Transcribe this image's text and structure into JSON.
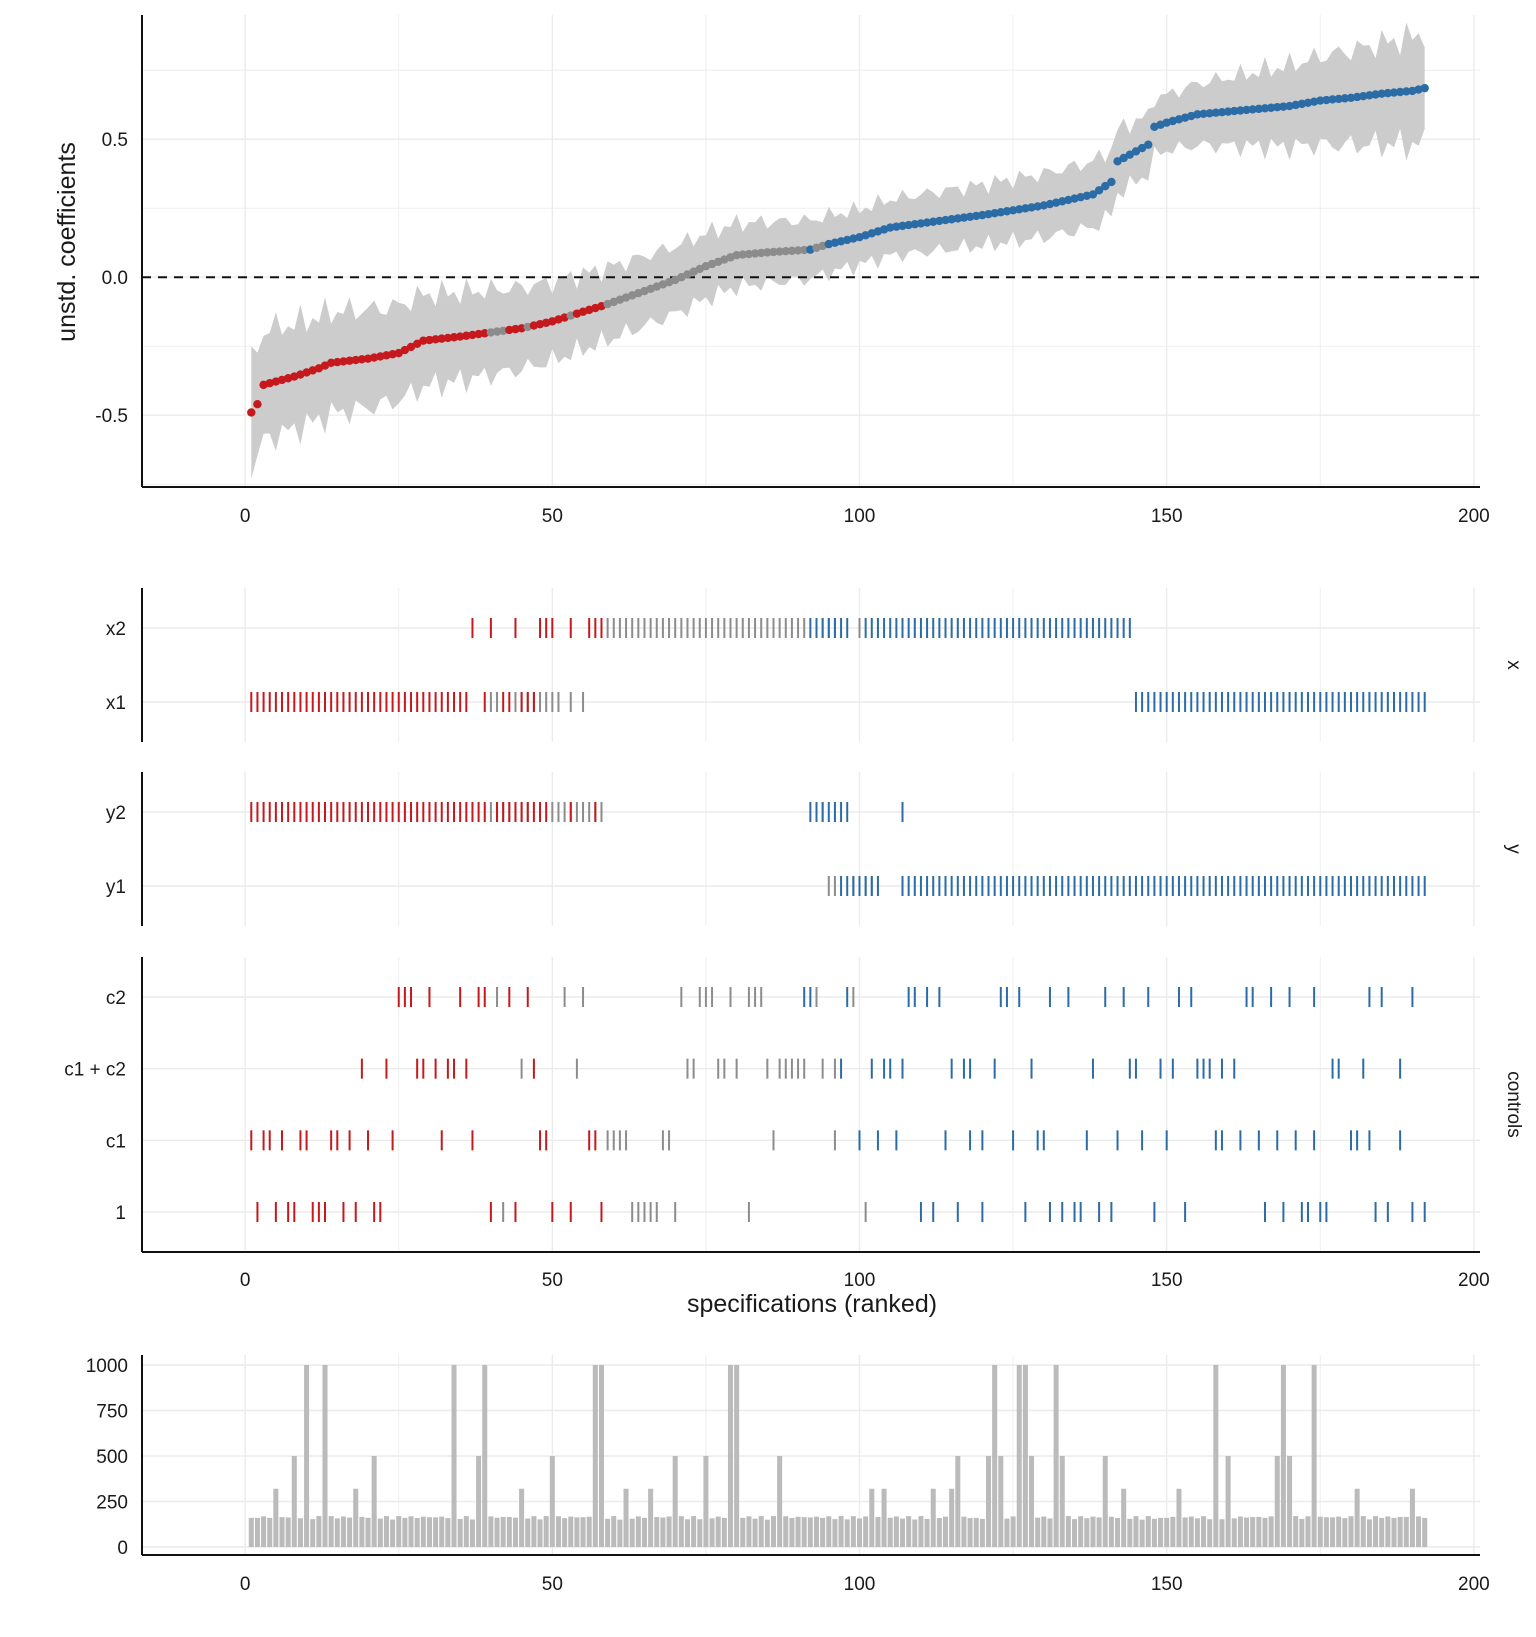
{
  "chart_data": {
    "type": "specification-curve",
    "x_label": "specifications (ranked)",
    "x_ticks": [
      0,
      50,
      100,
      150,
      200
    ],
    "x_range": [
      -8,
      201
    ],
    "n_specifications": 192,
    "colors": {
      "negative": "#c5191d",
      "non_significant": "#8c8c8c",
      "positive": "#2b6ca6",
      "ci_band": "#cccccc",
      "bars": "#bbbbbb",
      "grid": "#ebebeb"
    },
    "curve": {
      "y_label": "unstd. coefficients",
      "y_ticks": [
        -0.5,
        0.0,
        0.5
      ],
      "y_tick_labels": [
        "-0.5",
        "0.0",
        "0.5"
      ],
      "y_range": [
        -0.76,
        0.95
      ],
      "reference_line": 0,
      "anchors": [
        [
          1,
          -0.49
        ],
        [
          2,
          -0.46
        ],
        [
          3,
          -0.39
        ],
        [
          8,
          -0.36
        ],
        [
          12,
          -0.33
        ],
        [
          14,
          -0.31
        ],
        [
          20,
          -0.295
        ],
        [
          25,
          -0.275
        ],
        [
          29,
          -0.23
        ],
        [
          35,
          -0.215
        ],
        [
          40,
          -0.2
        ],
        [
          45,
          -0.185
        ],
        [
          50,
          -0.16
        ],
        [
          55,
          -0.125
        ],
        [
          58,
          -0.105
        ],
        [
          65,
          -0.05
        ],
        [
          70,
          -0.01
        ],
        [
          75,
          0.04
        ],
        [
          80,
          0.08
        ],
        [
          85,
          0.09
        ],
        [
          92,
          0.1
        ],
        [
          95,
          0.12
        ],
        [
          100,
          0.145
        ],
        [
          105,
          0.18
        ],
        [
          110,
          0.195
        ],
        [
          120,
          0.225
        ],
        [
          130,
          0.26
        ],
        [
          138,
          0.3
        ],
        [
          141,
          0.345
        ],
        [
          142,
          0.42
        ],
        [
          147,
          0.48
        ],
        [
          148,
          0.545
        ],
        [
          150,
          0.56
        ],
        [
          155,
          0.59
        ],
        [
          160,
          0.6
        ],
        [
          165,
          0.61
        ],
        [
          170,
          0.62
        ],
        [
          175,
          0.64
        ],
        [
          180,
          0.65
        ],
        [
          185,
          0.665
        ],
        [
          190,
          0.675
        ],
        [
          192,
          0.685
        ]
      ],
      "ci_half_width": [
        [
          1,
          0.2
        ],
        [
          60,
          0.13
        ],
        [
          100,
          0.1
        ],
        [
          140,
          0.12
        ],
        [
          150,
          0.1
        ],
        [
          192,
          0.2
        ]
      ],
      "significant_negative": [
        [
          1,
          39
        ],
        [
          43,
          45
        ],
        [
          47,
          52
        ],
        [
          54,
          58
        ]
      ],
      "significant_positive": [
        [
          92,
          92
        ],
        [
          95,
          98
        ],
        [
          99,
          192
        ]
      ]
    },
    "panels": [
      {
        "strip_label": "x",
        "rows": [
          {
            "label": "x2",
            "red": [
              37,
              40,
              44,
              48,
              49,
              50,
              53,
              56,
              57,
              58
            ],
            "gray": [
              59,
              91,
              94,
              95,
              96,
              100,
              100
            ],
            "blue": [
              92,
              97,
              98,
              101,
              144
            ]
          },
          {
            "label": "x1",
            "red": [
              1,
              36,
              39,
              42,
              43,
              45,
              46,
              47
            ],
            "gray": [
              41,
              40,
              44,
              51,
              53,
              55
            ],
            "blue": [
              145,
              192
            ]
          }
        ]
      },
      {
        "strip_label": "y",
        "rows": [
          {
            "label": "y2",
            "red": [
              1,
              39,
              41,
              49,
              53,
              57
            ],
            "gray": [
              40,
              46,
              50,
              58,
              93,
              94
            ],
            "blue": [
              92,
              98,
              107
            ]
          },
          {
            "label": "y1",
            "red": [],
            "gray": [
              95,
              96,
              99,
              100,
              101,
              102
            ],
            "blue": [
              97,
              103,
              107,
              108,
              192
            ]
          }
        ]
      },
      {
        "strip_label": "controls",
        "rows": [
          {
            "label": "c2",
            "red": [
              25,
              26,
              27,
              30,
              35,
              38,
              39,
              43,
              46
            ],
            "gray": [
              41,
              52,
              55,
              71,
              74,
              75,
              76,
              79,
              82,
              83,
              84,
              93,
              99
            ],
            "blue": [
              91,
              92,
              98,
              108,
              109,
              111,
              113,
              123,
              124,
              126,
              131,
              134,
              140,
              143,
              147,
              152,
              154,
              163,
              164,
              167,
              170,
              174,
              183,
              185,
              190
            ]
          },
          {
            "label": "c1 + c2",
            "red": [
              19,
              23,
              28,
              29,
              31,
              33,
              34,
              36,
              47
            ],
            "gray": [
              45,
              54,
              72,
              73,
              77,
              78,
              80,
              85,
              87,
              88,
              89,
              90,
              91,
              94,
              96
            ],
            "blue": [
              97,
              102,
              104,
              105,
              107,
              115,
              117,
              118,
              122,
              128,
              138,
              144,
              145,
              149,
              151,
              155,
              156,
              157,
              159,
              161,
              177,
              178,
              182,
              188
            ]
          },
          {
            "label": "c1",
            "red": [
              1,
              3,
              4,
              6,
              9,
              10,
              14,
              15,
              17,
              20,
              24,
              32,
              37,
              48,
              49,
              56,
              57
            ],
            "gray": [
              59,
              60,
              61,
              62,
              68,
              69,
              86,
              96
            ],
            "blue": [
              100,
              103,
              106,
              114,
              118,
              120,
              125,
              129,
              130,
              137,
              142,
              146,
              150,
              158,
              159,
              162,
              165,
              168,
              171,
              174,
              180,
              181,
              183,
              188
            ]
          },
          {
            "label": "1",
            "red": [
              2,
              5,
              7,
              8,
              11,
              12,
              13,
              16,
              18,
              21,
              22,
              40,
              44,
              50,
              53,
              58
            ],
            "gray": [
              42,
              63,
              64,
              65,
              66,
              67,
              70,
              82,
              101
            ],
            "blue": [
              110,
              112,
              116,
              120,
              127,
              131,
              133,
              135,
              136,
              139,
              141,
              148,
              153,
              166,
              169,
              172,
              173,
              175,
              176,
              184,
              186,
              190,
              192
            ]
          }
        ]
      }
    ],
    "bars": {
      "y_ticks": [
        0,
        250,
        500,
        750,
        1000
      ],
      "y_range": [
        0,
        1000
      ],
      "base": 150,
      "values": {
        "1": 160,
        "2": 160,
        "4": 160,
        "5": 320,
        "8": 500,
        "10": 1000,
        "13": 1000,
        "18": 320,
        "21": 500,
        "26": 160,
        "34": 1000,
        "38": 500,
        "39": 1000,
        "45": 320,
        "50": 500,
        "57": 1000,
        "58": 1000,
        "62": 320,
        "66": 320,
        "70": 500,
        "75": 500,
        "78": 160,
        "79": 1000,
        "80": 1000,
        "87": 500,
        "94": 160,
        "102": 320,
        "104": 320,
        "112": 320,
        "115": 320,
        "116": 500,
        "119": 160,
        "121": 500,
        "122": 1000,
        "123": 500,
        "126": 1000,
        "127": 1000,
        "128": 500,
        "132": 1000,
        "133": 500,
        "140": 500,
        "143": 320,
        "149": 160,
        "152": 320,
        "158": 1000,
        "160": 500,
        "168": 500,
        "168.5": 1000,
        "169": 1000,
        "170": 500,
        "174": 1000,
        "181": 320,
        "185": 160,
        "187": 160,
        "190": 320,
        "192": 160
      }
    }
  }
}
